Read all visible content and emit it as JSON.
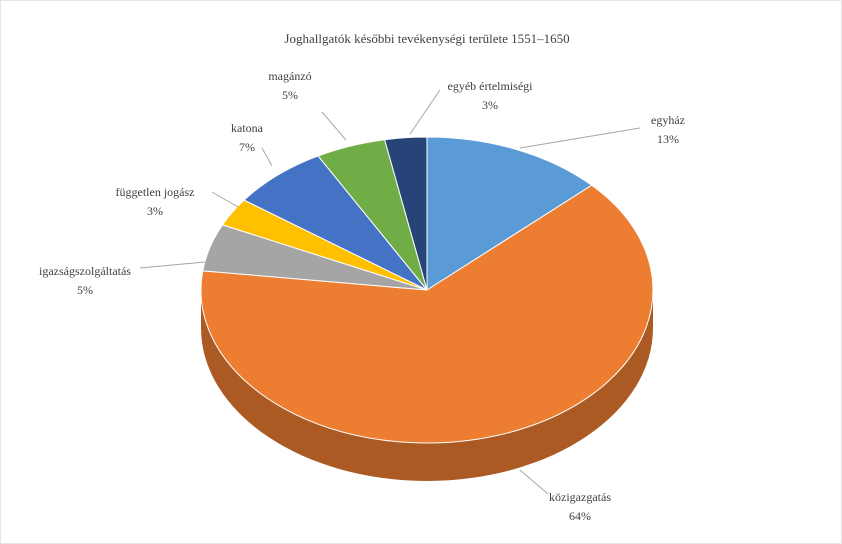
{
  "chart_data": {
    "type": "pie",
    "title": "Joghallgatók későbbi tevékenységi területe 1551–1650",
    "categories": [
      "egyház",
      "közigazgatás",
      "igazságszolgáltatás",
      "független jogász",
      "katona",
      "magánzó",
      "egyéb értelmiségi"
    ],
    "values": [
      13,
      64,
      5,
      3,
      7,
      5,
      3
    ],
    "value_labels": [
      "13%",
      "64%",
      "5%",
      "3%",
      "7%",
      "5%",
      "3%"
    ],
    "colors": [
      "#5b9bd5",
      "#ed7d31",
      "#a5a5a5",
      "#ffc000",
      "#4472c4",
      "#70ad47",
      "#264478"
    ]
  }
}
